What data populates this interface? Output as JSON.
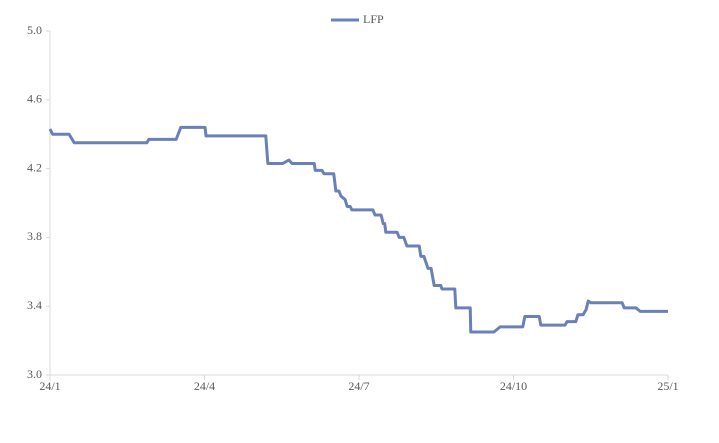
{
  "chart_data": {
    "type": "line",
    "x": [
      0,
      0.05,
      0.37,
      0.47,
      1.88,
      1.92,
      2.45,
      2.54,
      3.01,
      3.03,
      4.19,
      4.23,
      4.52,
      4.64,
      4.7,
      5.13,
      5.15,
      5.28,
      5.32,
      5.51,
      5.55,
      5.61,
      5.65,
      5.73,
      5.77,
      5.83,
      5.86,
      6.27,
      6.31,
      6.43,
      6.47,
      6.5,
      6.52,
      6.74,
      6.78,
      6.87,
      6.93,
      7.17,
      7.2,
      7.26,
      7.34,
      7.4,
      7.46,
      7.59,
      7.61,
      7.86,
      7.88,
      8.16,
      8.17,
      8.62,
      8.74,
      9.18,
      9.22,
      9.5,
      9.53,
      10.0,
      10.04,
      10.21,
      10.25,
      10.35,
      10.41,
      10.45,
      10.5,
      11.11,
      11.15,
      11.38,
      11.46,
      12.0
    ],
    "series": [
      {
        "name": "LFP",
        "color": "#6a80b8",
        "values": [
          4.43,
          4.4,
          4.4,
          4.35,
          4.35,
          4.37,
          4.37,
          4.44,
          4.44,
          4.39,
          4.39,
          4.23,
          4.23,
          4.25,
          4.23,
          4.23,
          4.19,
          4.19,
          4.17,
          4.17,
          4.07,
          4.07,
          4.04,
          4.02,
          3.98,
          3.98,
          3.96,
          3.96,
          3.93,
          3.93,
          3.88,
          3.88,
          3.83,
          3.83,
          3.8,
          3.8,
          3.75,
          3.75,
          3.69,
          3.69,
          3.62,
          3.62,
          3.52,
          3.52,
          3.5,
          3.5,
          3.39,
          3.39,
          3.25,
          3.25,
          3.28,
          3.28,
          3.34,
          3.34,
          3.29,
          3.29,
          3.31,
          3.31,
          3.35,
          3.35,
          3.38,
          3.43,
          3.42,
          3.42,
          3.39,
          3.39,
          3.37,
          3.37
        ]
      }
    ],
    "xlim": [
      0,
      12
    ],
    "xticks": [
      {
        "value": 0,
        "label": "24/1"
      },
      {
        "value": 3,
        "label": "24/4"
      },
      {
        "value": 6,
        "label": "24/7"
      },
      {
        "value": 9,
        "label": "24/10"
      },
      {
        "value": 12,
        "label": "25/1"
      }
    ],
    "ylim": [
      3.0,
      5.0
    ],
    "yticks": [
      {
        "value": 3.0,
        "label": "3.0"
      },
      3.4,
      3.8,
      4.2,
      4.6,
      {
        "value": 5.0,
        "label": "5.0"
      }
    ],
    "legend": "top"
  }
}
